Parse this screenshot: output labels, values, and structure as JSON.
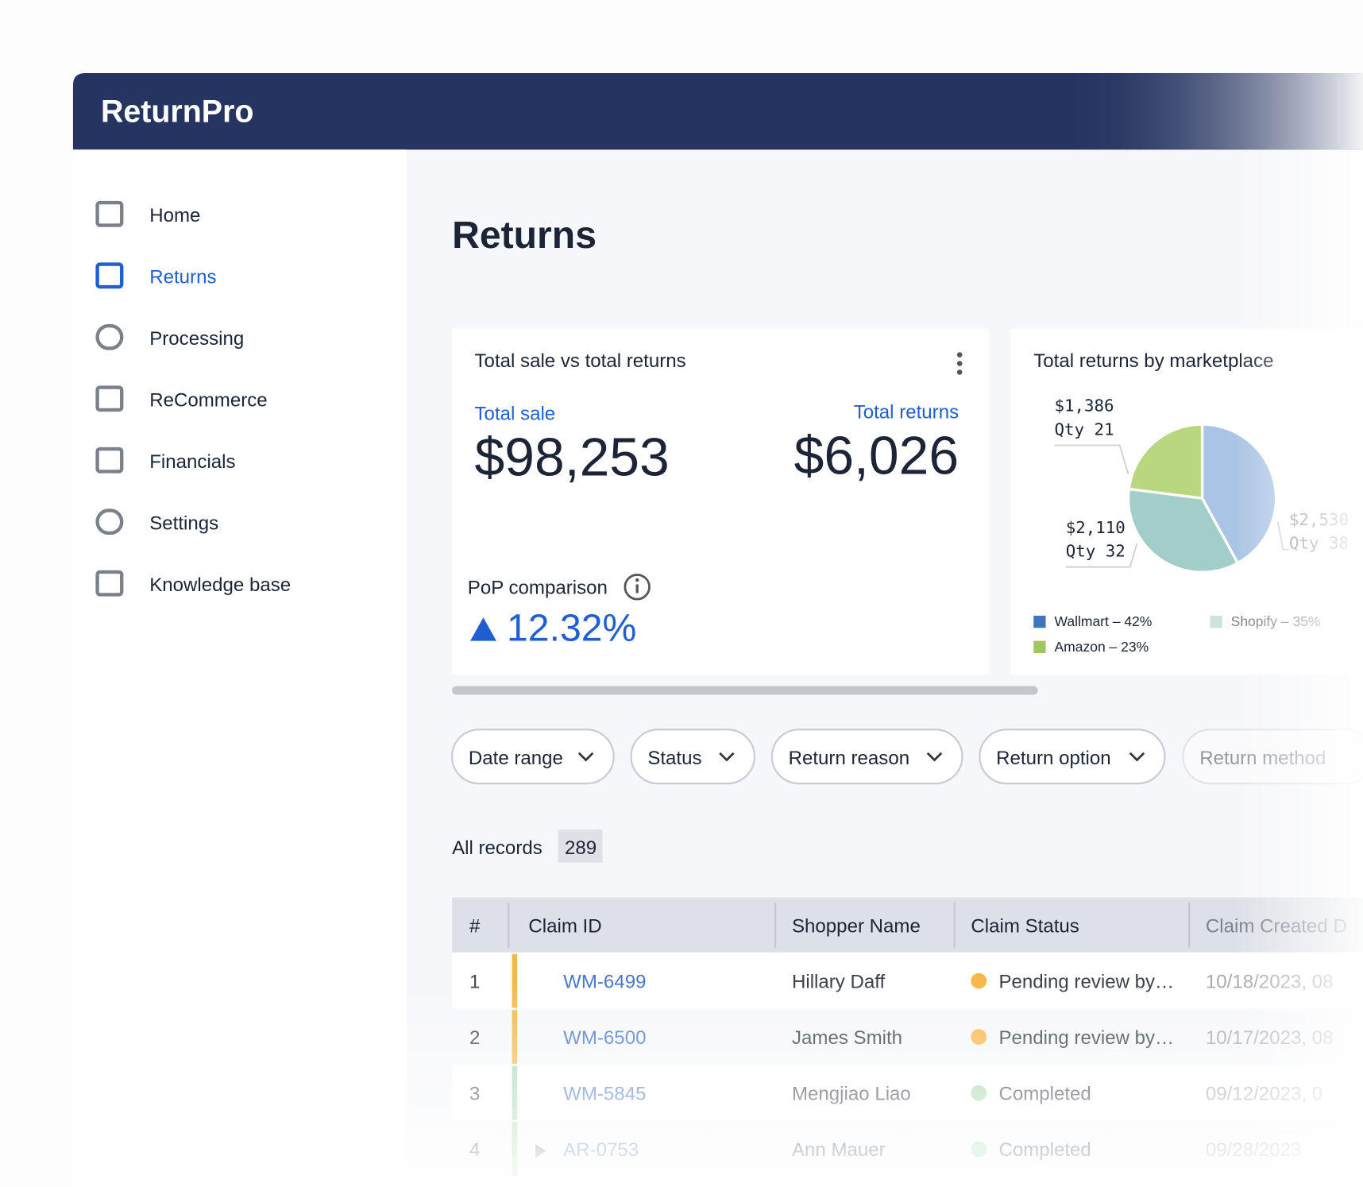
{
  "app": {
    "name": "ReturnPro"
  },
  "nav": [
    "Home",
    "Returns",
    "Processing",
    "ReCommerce",
    "Financials",
    "Settings",
    "Knowledge base"
  ],
  "page_title": "Returns",
  "summary": {
    "title": "Total sale vs total returns",
    "sale_label": "Total sale",
    "sale_value": "$98,253",
    "returns_label": "Total returns",
    "returns_value": "$6,026",
    "pop_label": "PoP comparison",
    "pop_value": "12.32%"
  },
  "pie": {
    "type": "pie",
    "title": "Total returns by marketplace",
    "values": [
      42,
      35,
      23
    ],
    "legend": [
      "Wallmart – 42%",
      "Shopify – 35%",
      "Amazon – 23%"
    ],
    "amounts": [
      "$2,530",
      "$2,110",
      "$1,386"
    ],
    "qty": [
      "Qty 38",
      "Qty 32",
      "Qty 21"
    ],
    "colors": [
      "#3f75bb",
      "#a9cfcd",
      "#9ec760"
    ],
    "slice_colors": [
      "#a9c4e4",
      "#a3cdc9",
      "#b9d77f"
    ]
  },
  "filters": [
    "Date range",
    "Status",
    "Return reason",
    "Return option",
    "Return method"
  ],
  "records": {
    "label": "All records",
    "count": 289
  },
  "table": {
    "headers": [
      "#",
      "Claim ID",
      "Shopper Name",
      "Claim Status",
      "Claim Created D"
    ],
    "rows": [
      [
        1,
        "WM-6499",
        "Hillary Daff",
        "Pending review by…",
        "10/18/2023, 08"
      ],
      [
        2,
        "WM-6500",
        "James Smith",
        "Pending review by…",
        "10/17/2023, 08"
      ],
      [
        3,
        "WM-5845",
        "Mengjiao Liao",
        "Completed",
        "09/12/2023, 0"
      ],
      [
        4,
        "AR-0753",
        "Ann Mauer",
        "Completed",
        "09/28/2023"
      ]
    ],
    "status_colors": [
      "#f7b84b",
      "#f7b84b",
      "#a7d9b0",
      "#a7d9b0"
    ]
  }
}
